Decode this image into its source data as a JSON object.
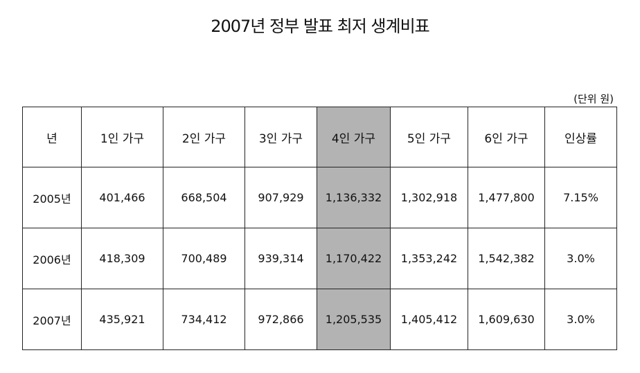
{
  "title": "2007년 정부 발표 최저 생계비표",
  "unit_note": "(단위 원)",
  "table": {
    "headers": [
      "년",
      "1인 가구",
      "2인 가구",
      "3인 가구",
      "4인 가구",
      "5인 가구",
      "6인 가구",
      "인상률"
    ],
    "rows": [
      [
        "2005년",
        "401,466",
        "668,504",
        "907,929",
        "1,136,332",
        "1,302,918",
        "1,477,800",
        "7.15%"
      ],
      [
        "2006년",
        "418,309",
        "700,489",
        "939,314",
        "1,170,422",
        "1,353,242",
        "1,542,382",
        "3.0%"
      ],
      [
        "2007년",
        "435,921",
        "734,412",
        "972,866",
        "1,205,535",
        "1,405,412",
        "1,609,630",
        "3.0%"
      ]
    ],
    "highlight_color": "#b3b3b3"
  }
}
